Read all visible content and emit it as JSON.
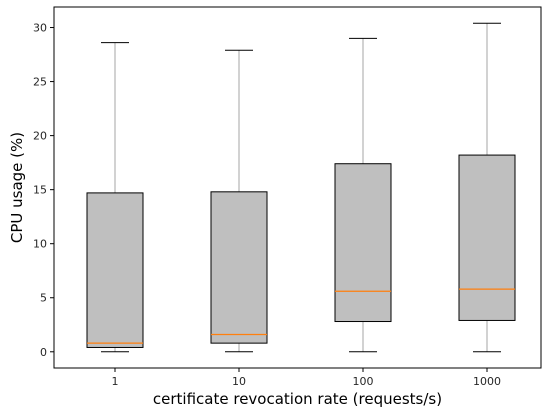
{
  "chart_data": {
    "type": "box",
    "categories": [
      "1",
      "10",
      "100",
      "1000"
    ],
    "boxes": [
      {
        "category": "1",
        "whisker_low": 0.0,
        "q1": 0.4,
        "median": 0.8,
        "q3": 14.7,
        "whisker_high": 28.6
      },
      {
        "category": "10",
        "whisker_low": 0.0,
        "q1": 0.8,
        "median": 1.6,
        "q3": 14.8,
        "whisker_high": 27.9
      },
      {
        "category": "100",
        "whisker_low": 0.0,
        "q1": 2.8,
        "median": 5.6,
        "q3": 17.4,
        "whisker_high": 29.0
      },
      {
        "category": "1000",
        "whisker_low": 0.0,
        "q1": 2.9,
        "median": 5.8,
        "q3": 18.2,
        "whisker_high": 30.4
      }
    ],
    "title": "",
    "xlabel": "certificate revocation rate (requests/s)",
    "ylabel": "CPU usage (%)",
    "ylim": [
      -1.5,
      31.9
    ],
    "yticks": [
      0,
      5,
      10,
      15,
      20,
      25,
      30
    ],
    "grid": false,
    "legend": "none",
    "colors": {
      "box_fill": "#bfbfbf",
      "box_edge": "#000000",
      "median": "#ff7f0e",
      "whisker": "#a6a6a6",
      "cap": "#000000"
    }
  }
}
